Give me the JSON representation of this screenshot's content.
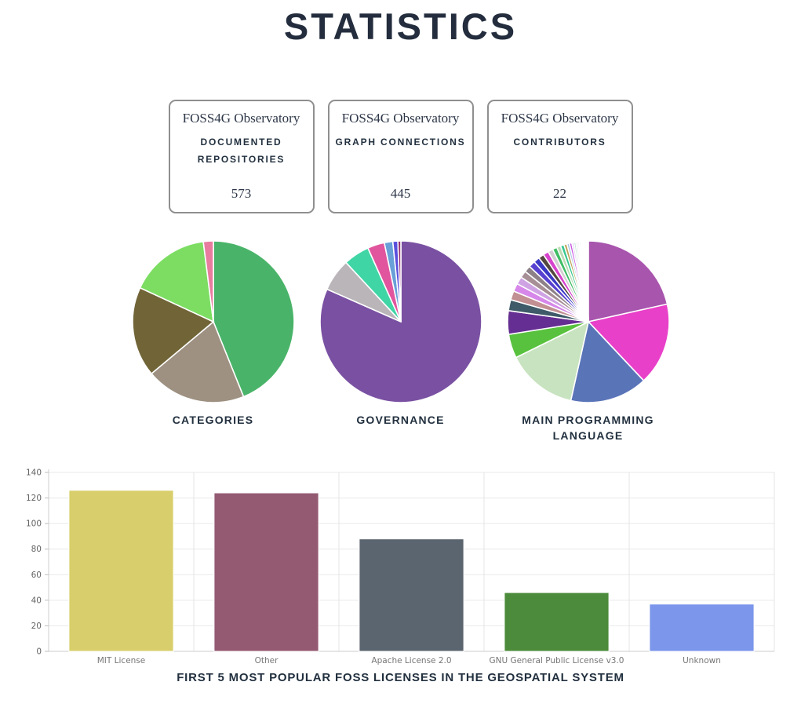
{
  "page": {
    "title": "STATISTICS"
  },
  "cards": [
    {
      "brand": "FOSS4G Observatory",
      "label": "DOCUMENTED REPOSITORIES",
      "value": "573"
    },
    {
      "brand": "FOSS4G Observatory",
      "label": "GRAPH CONNECTIONS",
      "value": "445"
    },
    {
      "brand": "FOSS4G Observatory",
      "label": "CONTRIBUTORS",
      "value": "22"
    }
  ],
  "chart_data": [
    {
      "type": "pie",
      "title": "CATEGORIES",
      "unit": "percent",
      "legend": false,
      "slices": [
        {
          "value": 43.9,
          "color": "#49b469"
        },
        {
          "value": 20.0,
          "color": "#9e9181"
        },
        {
          "value": 18.0,
          "color": "#716538"
        },
        {
          "value": 16.1,
          "color": "#7cdd62"
        },
        {
          "value": 2.0,
          "color": "#e77c9f"
        }
      ]
    },
    {
      "type": "pie",
      "title": "GOVERNANCE",
      "unit": "percent",
      "legend": false,
      "slices": [
        {
          "value": 81.6,
          "color": "#7a51a2"
        },
        {
          "value": 6.5,
          "color": "#b9b5b9"
        },
        {
          "value": 5.2,
          "color": "#40d5a5"
        },
        {
          "value": 3.4,
          "color": "#e1559e"
        },
        {
          "value": 1.7,
          "color": "#69a0d8"
        },
        {
          "value": 1.0,
          "color": "#5a50dd"
        },
        {
          "value": 0.6,
          "color": "#953074"
        }
      ]
    },
    {
      "type": "pie",
      "title": "MAIN PROGRAMMING LANGUAGE",
      "unit": "percent",
      "legend": false,
      "slices": [
        {
          "value": 21.5,
          "color": "#a855ad"
        },
        {
          "value": 16.5,
          "color": "#e940c9"
        },
        {
          "value": 15.5,
          "color": "#5a74b8"
        },
        {
          "value": 14.2,
          "color": "#c8e3bf"
        },
        {
          "value": 4.8,
          "color": "#58c23e"
        },
        {
          "value": 4.7,
          "color": "#652e92"
        },
        {
          "value": 2.2,
          "color": "#3f5a68"
        },
        {
          "value": 1.8,
          "color": "#c28f92"
        },
        {
          "value": 1.6,
          "color": "#d687e9"
        },
        {
          "value": 1.5,
          "color": "#cfa3e3"
        },
        {
          "value": 1.4,
          "color": "#a78f96"
        },
        {
          "value": 1.3,
          "color": "#8d8187"
        },
        {
          "value": 1.3,
          "color": "#5741d1"
        },
        {
          "value": 1.2,
          "color": "#3c38c6"
        },
        {
          "value": 1.1,
          "color": "#54473f"
        },
        {
          "value": 1.1,
          "color": "#d743cd"
        },
        {
          "value": 1.0,
          "color": "#d3ced2"
        },
        {
          "value": 0.9,
          "color": "#3fbd63"
        },
        {
          "value": 0.8,
          "color": "#bcdcb4"
        },
        {
          "value": 0.7,
          "color": "#36c791"
        },
        {
          "value": 0.6,
          "color": "#bfa55b"
        },
        {
          "value": 0.5,
          "color": "#a9c6e2"
        },
        {
          "value": 0.5,
          "color": "#cb59e3"
        },
        {
          "value": 0.4,
          "color": "#d9c9ef"
        },
        {
          "value": 0.4,
          "color": "#bfe9cd"
        },
        {
          "value": 0.35,
          "color": "#e2dde5"
        },
        {
          "value": 0.3,
          "color": "#eed6de"
        },
        {
          "value": 0.3,
          "color": "#d9e7f2"
        },
        {
          "value": 0.25,
          "color": "#e8f0e0"
        },
        {
          "value": 0.2,
          "color": "#f0e8f4"
        },
        {
          "value": 0.2,
          "color": "#f4f0ea"
        },
        {
          "value": 0.15,
          "color": "#f6f2f6"
        },
        {
          "value": 0.15,
          "color": "#f8f6f2"
        },
        {
          "value": 0.1,
          "color": "#fafafa"
        }
      ]
    },
    {
      "type": "bar",
      "title": "FIRST 5 MOST POPULAR FOSS LICENSES IN THE GEOSPATIAL SYSTEM",
      "categories": [
        "MIT License",
        "Other",
        "Apache License 2.0",
        "GNU General Public License v3.0",
        "Unknown"
      ],
      "values": [
        126,
        124,
        88,
        46,
        37
      ],
      "colors": [
        "#d8ce6b",
        "#945a72",
        "#5b6570",
        "#4c8b3b",
        "#7b96ea"
      ],
      "ylim": [
        0,
        140
      ],
      "ytick_step": 20,
      "yticks": [
        0,
        20,
        40,
        60,
        80,
        100,
        120,
        140
      ],
      "grid": true,
      "legend": false
    }
  ]
}
